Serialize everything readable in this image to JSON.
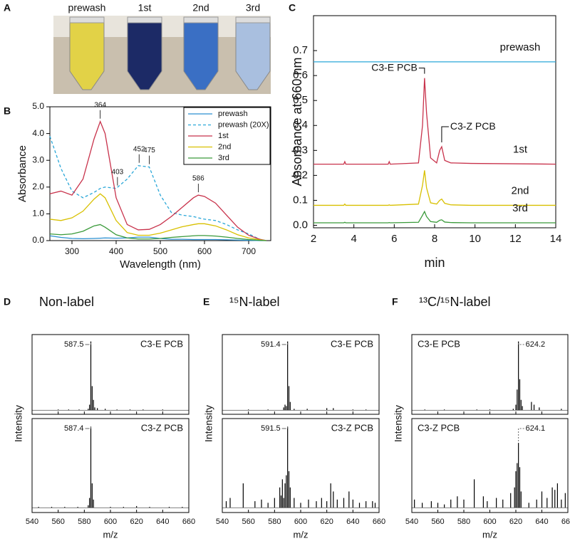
{
  "panel_a": {
    "panel": "A",
    "tubes": [
      "prewash",
      "1st",
      "2nd",
      "3rd"
    ],
    "colors": [
      "#e2d247",
      "#1c2a66",
      "#3a6fc4",
      "#a9bfdf"
    ]
  },
  "chart_data": [
    {
      "type": "line",
      "panel": "B",
      "xlabel": "Wavelength (nm)",
      "ylabel": "Absorbance",
      "x": [
        250,
        275,
        300,
        325,
        350,
        364,
        375,
        400,
        425,
        450,
        475,
        500,
        525,
        550,
        575,
        586,
        600,
        625,
        650,
        675,
        700,
        725,
        740
      ],
      "xlim": [
        250,
        750
      ],
      "xticks": [
        300,
        400,
        500,
        600,
        700
      ],
      "ylim": [
        0,
        5
      ],
      "yticks": [
        {
          "value": 0,
          "label": "0.0"
        },
        {
          "value": 1,
          "label": "1.0"
        },
        {
          "value": 2,
          "label": "2.0"
        },
        {
          "value": 3,
          "label": "3.0"
        },
        {
          "value": 4,
          "label": "4.0"
        },
        {
          "value": 5,
          "label": "5.0"
        }
      ],
      "legend": "upper right",
      "series": [
        {
          "name": "prewash",
          "color": "#2a8fd0",
          "dashed": false,
          "values": [
            0.18,
            0.12,
            0.08,
            0.07,
            0.08,
            0.09,
            0.1,
            0.09,
            0.1,
            0.13,
            0.13,
            0.08,
            0.05,
            0.05,
            0.04,
            0.04,
            0.04,
            0.04,
            0.03,
            0.02,
            0.01,
            0,
            0
          ]
        },
        {
          "name": "prewash (20X)",
          "color": "#2aa7d8",
          "dashed": true,
          "values": [
            3.9,
            2.7,
            1.85,
            1.6,
            1.8,
            1.95,
            2.0,
            1.95,
            2.3,
            2.8,
            2.75,
            1.7,
            1.05,
            0.95,
            0.9,
            0.85,
            0.8,
            0.75,
            0.6,
            0.4,
            0.25,
            0.05,
            0
          ]
        },
        {
          "name": "1st",
          "color": "#c8324b",
          "dashed": false,
          "values": [
            1.75,
            1.85,
            1.7,
            2.3,
            3.8,
            4.45,
            4.0,
            1.6,
            0.6,
            0.4,
            0.42,
            0.6,
            0.9,
            1.25,
            1.6,
            1.7,
            1.65,
            1.4,
            0.95,
            0.5,
            0.2,
            0.05,
            0
          ]
        },
        {
          "name": "2nd",
          "color": "#d8c000",
          "dashed": false,
          "values": [
            0.8,
            0.75,
            0.85,
            1.1,
            1.55,
            1.75,
            1.6,
            0.75,
            0.3,
            0.2,
            0.2,
            0.28,
            0.4,
            0.52,
            0.6,
            0.63,
            0.63,
            0.55,
            0.4,
            0.22,
            0.1,
            0.03,
            0
          ]
        },
        {
          "name": "3rd",
          "color": "#3a9a3a",
          "dashed": false,
          "values": [
            0.25,
            0.22,
            0.25,
            0.35,
            0.55,
            0.6,
            0.5,
            0.22,
            0.1,
            0.06,
            0.06,
            0.08,
            0.12,
            0.15,
            0.18,
            0.19,
            0.19,
            0.17,
            0.13,
            0.08,
            0.04,
            0.01,
            0
          ]
        }
      ],
      "annotations": [
        {
          "text": "364",
          "x": 364,
          "y": 4.45,
          "side": "top"
        },
        {
          "text": "403",
          "x": 403,
          "y": 1.95,
          "side": "top"
        },
        {
          "text": "452",
          "x": 452,
          "y": 2.8,
          "side": "top"
        },
        {
          "text": "475",
          "x": 475,
          "y": 2.75,
          "side": "top"
        },
        {
          "text": "586",
          "x": 586,
          "y": 1.7,
          "side": "top"
        }
      ]
    },
    {
      "type": "line",
      "panel": "C",
      "xlabel": "min",
      "ylabel": "Absorbance at 660 nm",
      "x": [
        2,
        3.5,
        3.55,
        3.6,
        5.7,
        5.75,
        5.8,
        7.2,
        7.4,
        7.5,
        7.6,
        7.8,
        8.1,
        8.25,
        8.35,
        8.5,
        8.8,
        9.8,
        14
      ],
      "xlim": [
        2,
        14
      ],
      "xticks": [
        2,
        4,
        6,
        8,
        10,
        12,
        14
      ],
      "ylim": [
        -0.01,
        0.84
      ],
      "yticks": [
        {
          "value": 0,
          "label": "0.0"
        },
        0.1,
        0.2,
        0.3,
        0.4,
        0.5,
        0.6,
        0.7
      ],
      "legend": "inline",
      "series": [
        {
          "name": "prewash",
          "color": "#2aa7d8",
          "dashed": false,
          "values": [
            0.655,
            0.655,
            0.655,
            0.655,
            0.655,
            0.655,
            0.655,
            0.655,
            0.655,
            0.655,
            0.655,
            0.655,
            0.655,
            0.655,
            0.655,
            0.655,
            0.655,
            0.655,
            0.655
          ]
        },
        {
          "name": "1st",
          "color": "#c8324b",
          "dashed": false,
          "values": [
            0.245,
            0.245,
            0.255,
            0.245,
            0.245,
            0.255,
            0.245,
            0.25,
            0.4,
            0.59,
            0.45,
            0.27,
            0.25,
            0.3,
            0.315,
            0.26,
            0.25,
            0.248,
            0.245
          ]
        },
        {
          "name": "2nd",
          "color": "#d8c000",
          "dashed": false,
          "values": [
            0.08,
            0.08,
            0.085,
            0.08,
            0.08,
            0.082,
            0.08,
            0.085,
            0.16,
            0.22,
            0.15,
            0.09,
            0.085,
            0.1,
            0.105,
            0.088,
            0.082,
            0.08,
            0.08
          ]
        },
        {
          "name": "3rd",
          "color": "#3a9a3a",
          "dashed": false,
          "values": [
            0.01,
            0.01,
            0.012,
            0.01,
            0.01,
            0.011,
            0.01,
            0.012,
            0.04,
            0.055,
            0.035,
            0.015,
            0.012,
            0.02,
            0.022,
            0.013,
            0.011,
            0.01,
            0.01
          ]
        }
      ],
      "annotations": [
        {
          "text": "C3-E PCB",
          "x": 7.5,
          "y": 0.59,
          "side": "left"
        },
        {
          "text": "C3-Z PCB",
          "x": 8.35,
          "y": 0.315,
          "side": "right"
        }
      ]
    },
    {
      "type": "stem",
      "panel": "D",
      "title": "Non-label",
      "xlabel": "m/z",
      "ylabel": "Intensity",
      "xlim": [
        540,
        660
      ],
      "xticks": [
        540,
        560,
        580,
        600,
        620,
        640,
        660
      ],
      "ylim": [
        -6,
        110
      ],
      "subplots": [
        {
          "label": "C3-E PCB",
          "label_corner": "upper right",
          "annotation": "587.5",
          "annotation_side": "left",
          "x": [
            560,
            568,
            576,
            583,
            584,
            585,
            586,
            587,
            588,
            590,
            596,
            605,
            615,
            625,
            640
          ],
          "values": [
            1,
            1,
            1,
            2,
            8,
            100,
            35,
            15,
            4,
            3,
            2,
            1,
            1,
            1,
            1
          ]
        },
        {
          "label": "C3-Z PCB",
          "label_corner": "upper right",
          "annotation": "587.4",
          "annotation_side": "left",
          "x": [
            545,
            555,
            565,
            575,
            583,
            584,
            585,
            586,
            587,
            600,
            610,
            620,
            630,
            645,
            655
          ],
          "values": [
            1,
            1,
            1,
            1,
            3,
            12,
            100,
            30,
            10,
            1,
            1,
            2,
            1,
            1,
            1
          ]
        }
      ]
    },
    {
      "type": "stem",
      "panel": "E",
      "title": "¹⁵N-label",
      "xlabel": "m/z",
      "ylabel": "Intensity",
      "xlim": [
        540,
        660
      ],
      "xticks": [
        540,
        560,
        580,
        600,
        620,
        640,
        660
      ],
      "ylim": [
        -6,
        110
      ],
      "subplots": [
        {
          "label": "C3-E PCB",
          "label_corner": "upper right",
          "annotation": "591.4",
          "annotation_side": "left",
          "x": [
            560,
            575,
            587,
            588,
            589,
            590,
            591,
            592,
            595,
            605,
            620,
            625,
            640,
            650
          ],
          "values": [
            1,
            1,
            4,
            8,
            6,
            100,
            35,
            12,
            2,
            2,
            3,
            3,
            1,
            1
          ]
        },
        {
          "label": "C3-Z PCB",
          "label_corner": "upper right",
          "annotation": "591.5",
          "annotation_side": "left",
          "x": [
            543,
            546,
            556,
            565,
            570,
            575,
            580,
            584,
            585,
            586,
            587,
            588,
            589,
            590,
            591,
            592,
            595,
            600,
            606,
            612,
            616,
            620,
            623,
            625,
            628,
            633,
            637,
            640,
            645,
            650,
            655,
            657
          ],
          "values": [
            8,
            12,
            30,
            8,
            10,
            6,
            12,
            25,
            15,
            35,
            12,
            30,
            40,
            100,
            45,
            25,
            12,
            6,
            10,
            8,
            12,
            8,
            30,
            20,
            10,
            12,
            20,
            10,
            6,
            8,
            8,
            6
          ]
        }
      ]
    },
    {
      "type": "stem",
      "panel": "F",
      "title": "¹³C/¹⁵N-label",
      "xlabel": "m/z",
      "ylabel": "Intensity",
      "xlim": [
        540,
        660
      ],
      "xticks": [
        540,
        560,
        580,
        600,
        620,
        640,
        660
      ],
      "ylim": [
        -6,
        110
      ],
      "subplots": [
        {
          "label": "C3-E PCB",
          "label_corner": "upper left",
          "annotation": "624.2",
          "annotation_side": "right",
          "x": [
            550,
            565,
            590,
            600,
            618,
            620,
            621,
            622,
            623,
            624,
            625,
            632,
            634,
            638,
            655
          ],
          "values": [
            1,
            1,
            1,
            1,
            2,
            8,
            30,
            100,
            45,
            15,
            6,
            12,
            8,
            4,
            2
          ]
        },
        {
          "label": "C3-Z PCB",
          "label_corner": "upper left",
          "annotation": "624.1",
          "annotation_side": "right",
          "x": [
            542,
            548,
            555,
            560,
            565,
            570,
            575,
            580,
            588,
            595,
            598,
            605,
            610,
            616,
            619,
            620,
            621,
            622,
            623,
            624,
            630,
            636,
            640,
            644,
            648,
            650,
            652,
            655,
            658
          ],
          "values": [
            10,
            6,
            8,
            6,
            4,
            10,
            14,
            10,
            35,
            14,
            8,
            12,
            10,
            18,
            25,
            45,
            55,
            80,
            50,
            20,
            6,
            10,
            20,
            12,
            25,
            22,
            30,
            10,
            18
          ]
        }
      ]
    }
  ]
}
